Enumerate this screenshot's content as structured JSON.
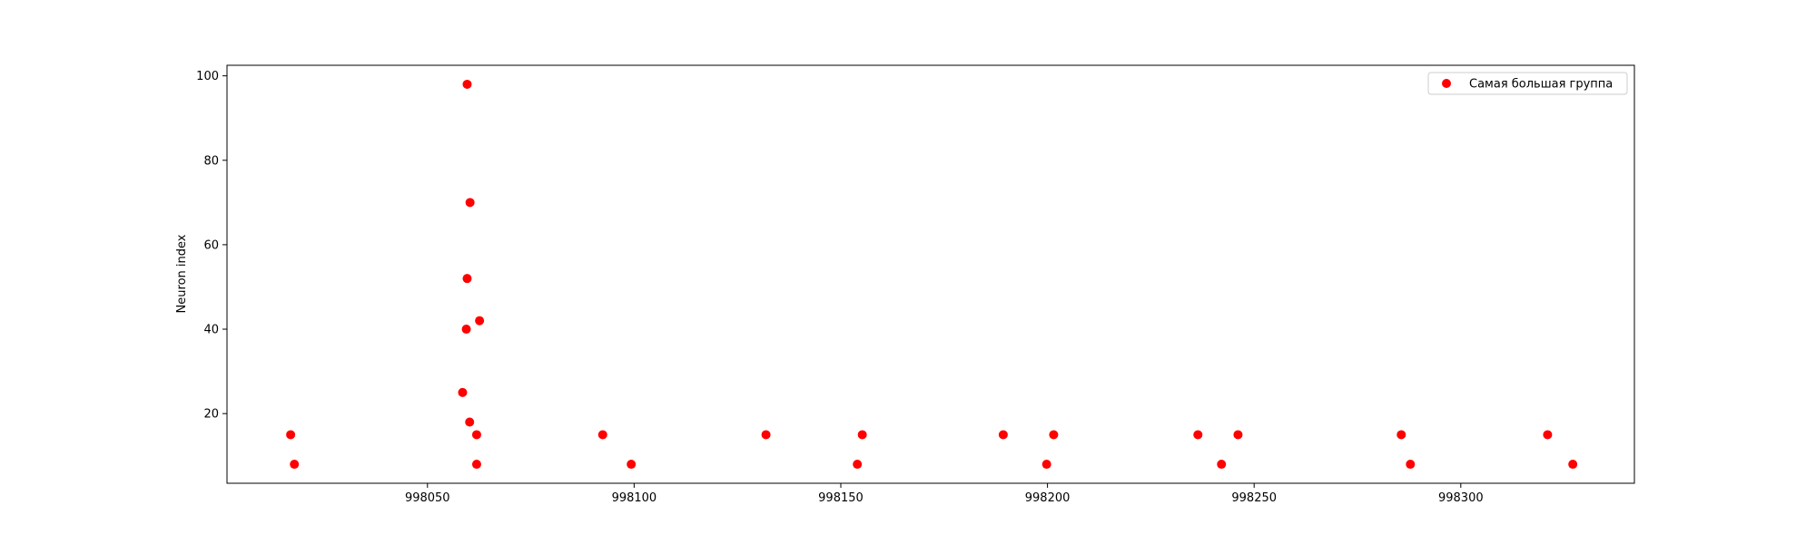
{
  "chart_data": {
    "type": "scatter",
    "title": "",
    "xlabel": "",
    "ylabel": "Neuron index",
    "xlim": [
      998001.5,
      998342
    ],
    "ylim": [
      3.5,
      102.5
    ],
    "xticks": [
      998050,
      998100,
      998150,
      998200,
      998250,
      998300
    ],
    "yticks": [
      20,
      40,
      60,
      80,
      100
    ],
    "grid": false,
    "legend_position": "top-right",
    "series": [
      {
        "name": "Самая большая группа",
        "color": "#ff0000",
        "marker": "circle",
        "points": [
          {
            "x": 998016.9,
            "y": 15
          },
          {
            "x": 998017.8,
            "y": 8
          },
          {
            "x": 998058.5,
            "y": 25
          },
          {
            "x": 998059.4,
            "y": 40
          },
          {
            "x": 998059.6,
            "y": 98
          },
          {
            "x": 998059.6,
            "y": 52
          },
          {
            "x": 998060.2,
            "y": 18
          },
          {
            "x": 998060.3,
            "y": 70
          },
          {
            "x": 998061.9,
            "y": 15
          },
          {
            "x": 998061.9,
            "y": 8
          },
          {
            "x": 998062.6,
            "y": 42
          },
          {
            "x": 998092.4,
            "y": 15
          },
          {
            "x": 998099.3,
            "y": 8
          },
          {
            "x": 998131.9,
            "y": 15
          },
          {
            "x": 998154.0,
            "y": 8
          },
          {
            "x": 998155.2,
            "y": 15
          },
          {
            "x": 998189.3,
            "y": 15
          },
          {
            "x": 998199.8,
            "y": 8
          },
          {
            "x": 998201.5,
            "y": 15
          },
          {
            "x": 998236.4,
            "y": 15
          },
          {
            "x": 998242.1,
            "y": 8
          },
          {
            "x": 998246.1,
            "y": 15
          },
          {
            "x": 998285.6,
            "y": 15
          },
          {
            "x": 998287.8,
            "y": 8
          },
          {
            "x": 998321.0,
            "y": 15
          },
          {
            "x": 998327.1,
            "y": 8
          }
        ]
      }
    ]
  }
}
